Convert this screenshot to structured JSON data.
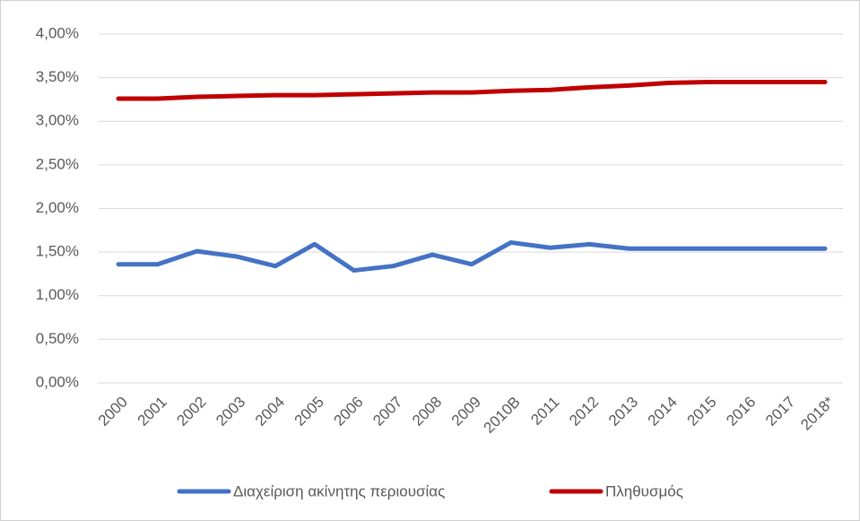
{
  "chart_data": {
    "type": "line",
    "categories": [
      "2000",
      "2001",
      "2002",
      "2003",
      "2004",
      "2005",
      "2006",
      "2007",
      "2008",
      "2009",
      "2010B",
      "2011",
      "2012",
      "2013",
      "2014",
      "2015",
      "2016",
      "2017",
      "2018*"
    ],
    "series": [
      {
        "name": "Διαχείριση ακίνητης περιουσίας",
        "color": "#4472c4",
        "values": [
          1.36,
          1.36,
          1.51,
          1.45,
          1.34,
          1.59,
          1.29,
          1.34,
          1.47,
          1.36,
          1.61,
          1.55,
          1.59,
          1.54,
          1.54,
          1.54,
          1.54,
          1.54,
          1.54
        ]
      },
      {
        "name": "Πληθυσμός",
        "color": "#c00000",
        "values": [
          3.26,
          3.26,
          3.28,
          3.29,
          3.3,
          3.3,
          3.31,
          3.32,
          3.33,
          3.33,
          3.35,
          3.36,
          3.39,
          3.41,
          3.44,
          3.45,
          3.45,
          3.45,
          3.45
        ]
      }
    ],
    "ylim": [
      0,
      4
    ],
    "yticks": [
      {
        "value": 0,
        "label": "0,00%"
      },
      {
        "value": 0.5,
        "label": "0,50%"
      },
      {
        "value": 1,
        "label": "1,00%"
      },
      {
        "value": 1.5,
        "label": "1,50%"
      },
      {
        "value": 2,
        "label": "2,00%"
      },
      {
        "value": 2.5,
        "label": "2,50%"
      },
      {
        "value": 3,
        "label": "3,00%"
      },
      {
        "value": 3.5,
        "label": "3,50%"
      },
      {
        "value": 4,
        "label": "4,00%"
      }
    ],
    "grid": true,
    "legend": "bottom"
  }
}
